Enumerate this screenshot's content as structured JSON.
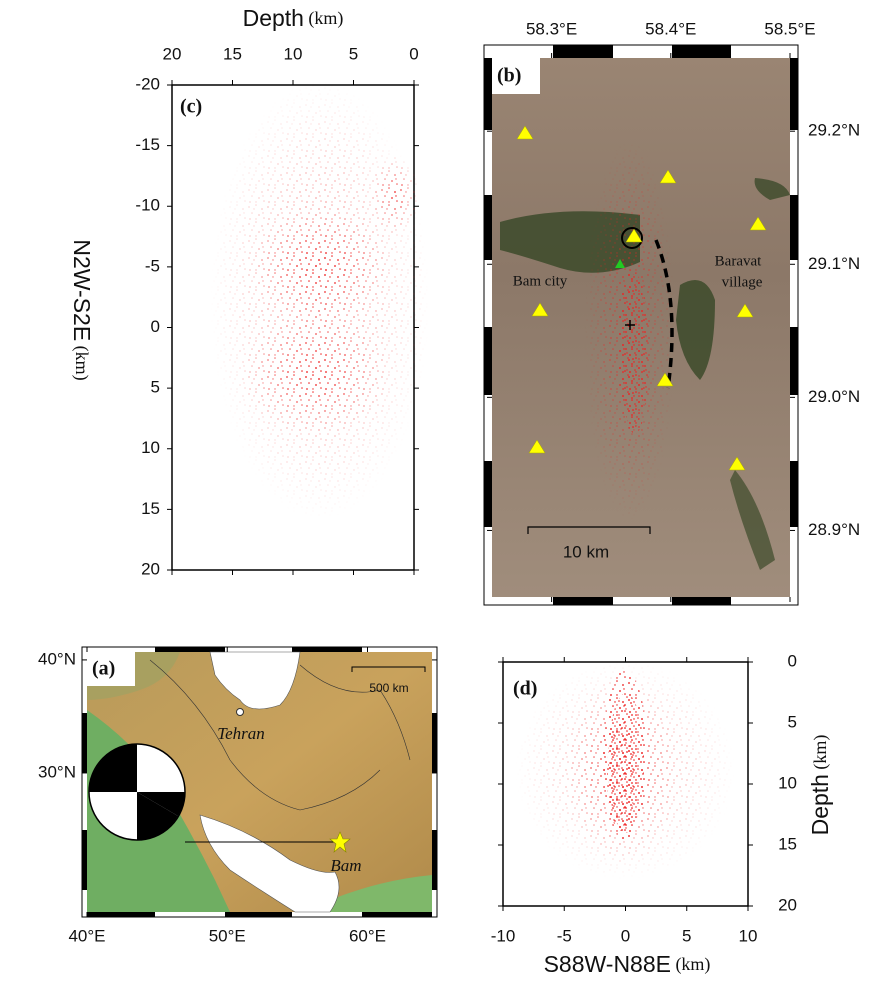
{
  "panels": {
    "c": {
      "label": "(c)",
      "x_title": "Depth",
      "x_unit": "(km)",
      "y_title": "N2W-S2E",
      "y_unit": "(km)",
      "xlim": [
        0,
        20
      ],
      "x_inverted": true,
      "xticks": [
        20,
        15,
        10,
        5,
        0
      ],
      "ylim": [
        -20,
        20
      ],
      "y_inverted": true,
      "yticks": [
        -20,
        -15,
        -10,
        -5,
        0,
        5,
        10,
        15,
        20
      ]
    },
    "b": {
      "label": "(b)",
      "xlim": [
        58.25,
        58.5
      ],
      "xticks": [
        {
          "value": 58.3,
          "label": "58.3°E"
        },
        {
          "value": 58.4,
          "label": "58.4°E"
        },
        {
          "value": 58.5,
          "label": "58.5°E"
        }
      ],
      "ylim": [
        28.85,
        29.255
      ],
      "yticks": [
        {
          "value": 28.9,
          "label": "28.9°N"
        },
        {
          "value": 29.0,
          "label": "29.0°N"
        },
        {
          "value": 29.1,
          "label": "29.1°N"
        },
        {
          "value": 29.2,
          "label": "29.2°N"
        }
      ],
      "city": "Bam city",
      "village": [
        "Baravat",
        "village"
      ],
      "scale_bar": "10 km"
    },
    "a": {
      "label": "(a)",
      "xlim": [
        40,
        64.6
      ],
      "xticks": [
        {
          "value": 40,
          "label": "40°E"
        },
        {
          "value": 50,
          "label": "50°E"
        },
        {
          "value": 60,
          "label": "60°E"
        }
      ],
      "ylim": [
        17.7,
        40.7
      ],
      "yticks": [
        {
          "value": 30,
          "label": "30°N"
        },
        {
          "value": 40,
          "label": "40°N"
        }
      ],
      "city": "Tehran",
      "epicenter": "Bam",
      "scale_bar": "500 km"
    },
    "d": {
      "label": "(d)",
      "x_title": "S88W-N88E",
      "x_unit": "(km)",
      "y_title": "Depth",
      "y_unit": "(km)",
      "xlim": [
        -10,
        10
      ],
      "xticks": [
        -10,
        -5,
        0,
        5,
        10
      ],
      "ylim": [
        0,
        20
      ],
      "y_inverted": true,
      "yticks": [
        0,
        5,
        10,
        15,
        20
      ]
    }
  }
}
